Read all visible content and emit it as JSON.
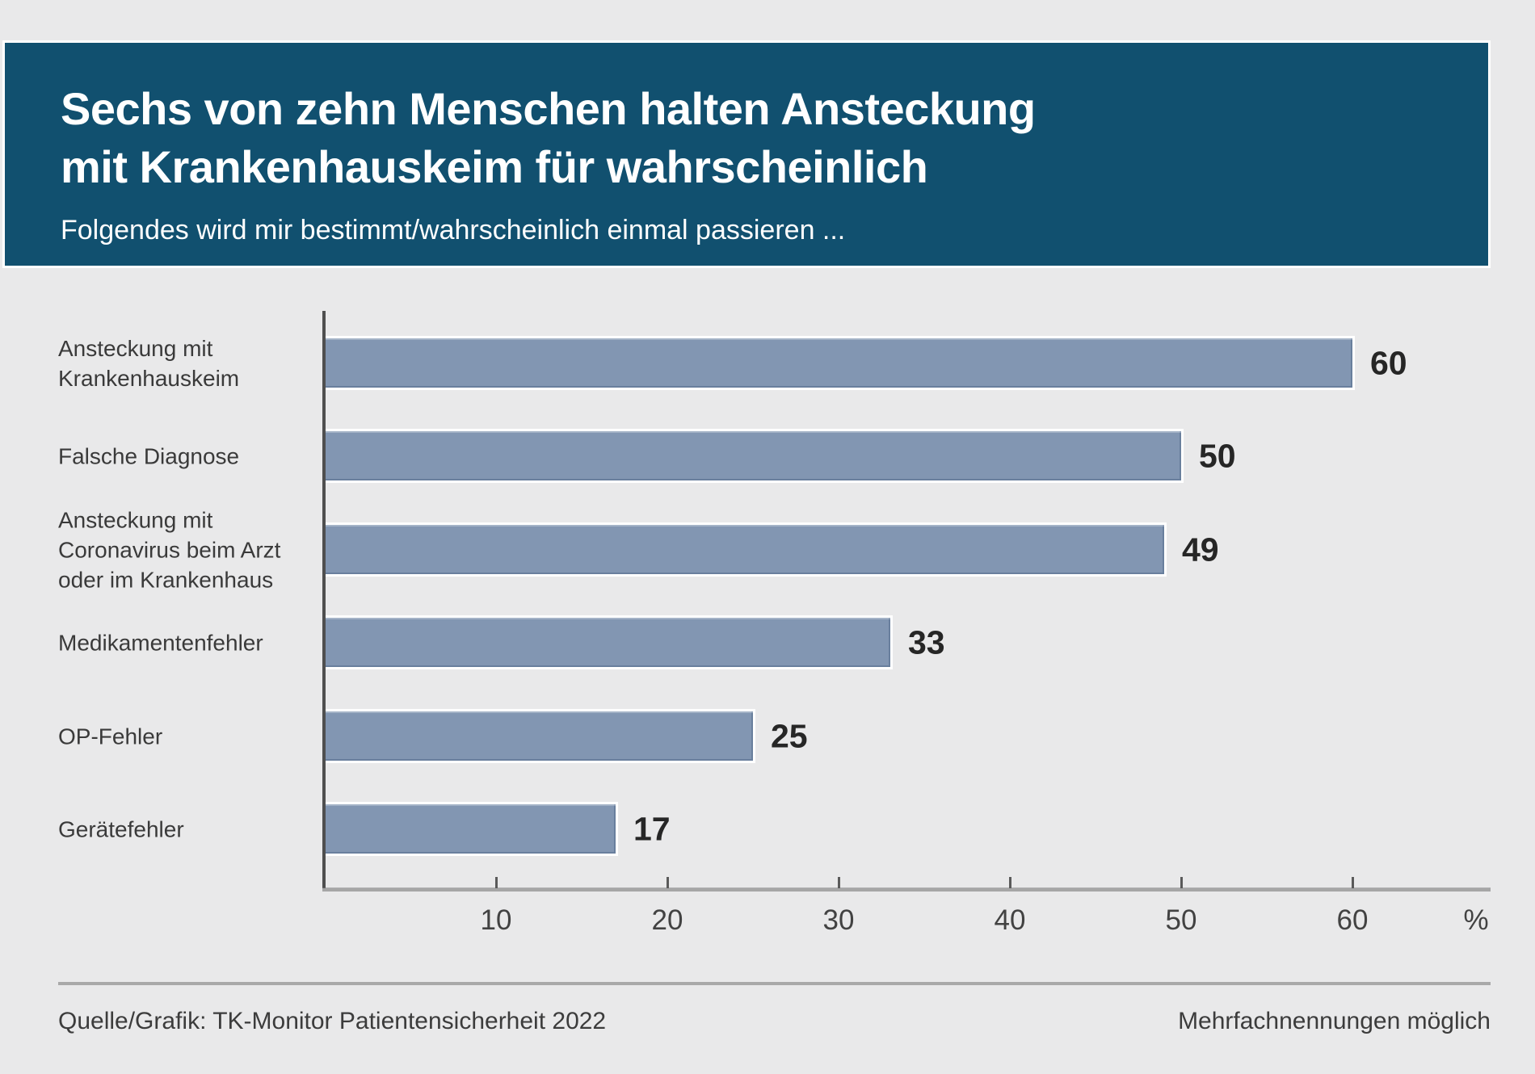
{
  "header": {
    "title": "Sechs von zehn Menschen halten Ansteckung\nmit Krankenhauskeim für wahrscheinlich",
    "subtitle": "Folgendes wird mir bestimmt/wahrscheinlich einmal passieren ..."
  },
  "chart_data": {
    "type": "bar",
    "orientation": "horizontal",
    "categories": [
      "Ansteckung mit\nKrankenhauskeim",
      "Falsche Diagnose",
      "Ansteckung mit\nCoronavirus beim Arzt\noder im Krankenhaus",
      "Medikamentenfehler",
      "OP-Fehler",
      "Gerätefehler"
    ],
    "values": [
      60,
      50,
      49,
      33,
      25,
      17
    ],
    "value_labels": [
      "60",
      "50",
      "49",
      "33",
      "25",
      "17"
    ],
    "x_ticks": [
      "10",
      "20",
      "30",
      "40",
      "50",
      "60"
    ],
    "x_unit": "%",
    "xlim": [
      0,
      68
    ],
    "grid": false,
    "legend": false,
    "bar_color": "#8296b2",
    "value_label_color": "#262626"
  },
  "footer": {
    "source": "Quelle/Grafik: TK-Monitor Patientensicherheit 2022",
    "note": "Mehrfachnennungen möglich"
  },
  "colors": {
    "background": "#e9e9ea",
    "header_background": "#11506f",
    "header_text": "#ffffff",
    "axis_dark": "#4f4f4f",
    "axis_light": "#a6a6a6",
    "text": "#3a3a3a"
  }
}
